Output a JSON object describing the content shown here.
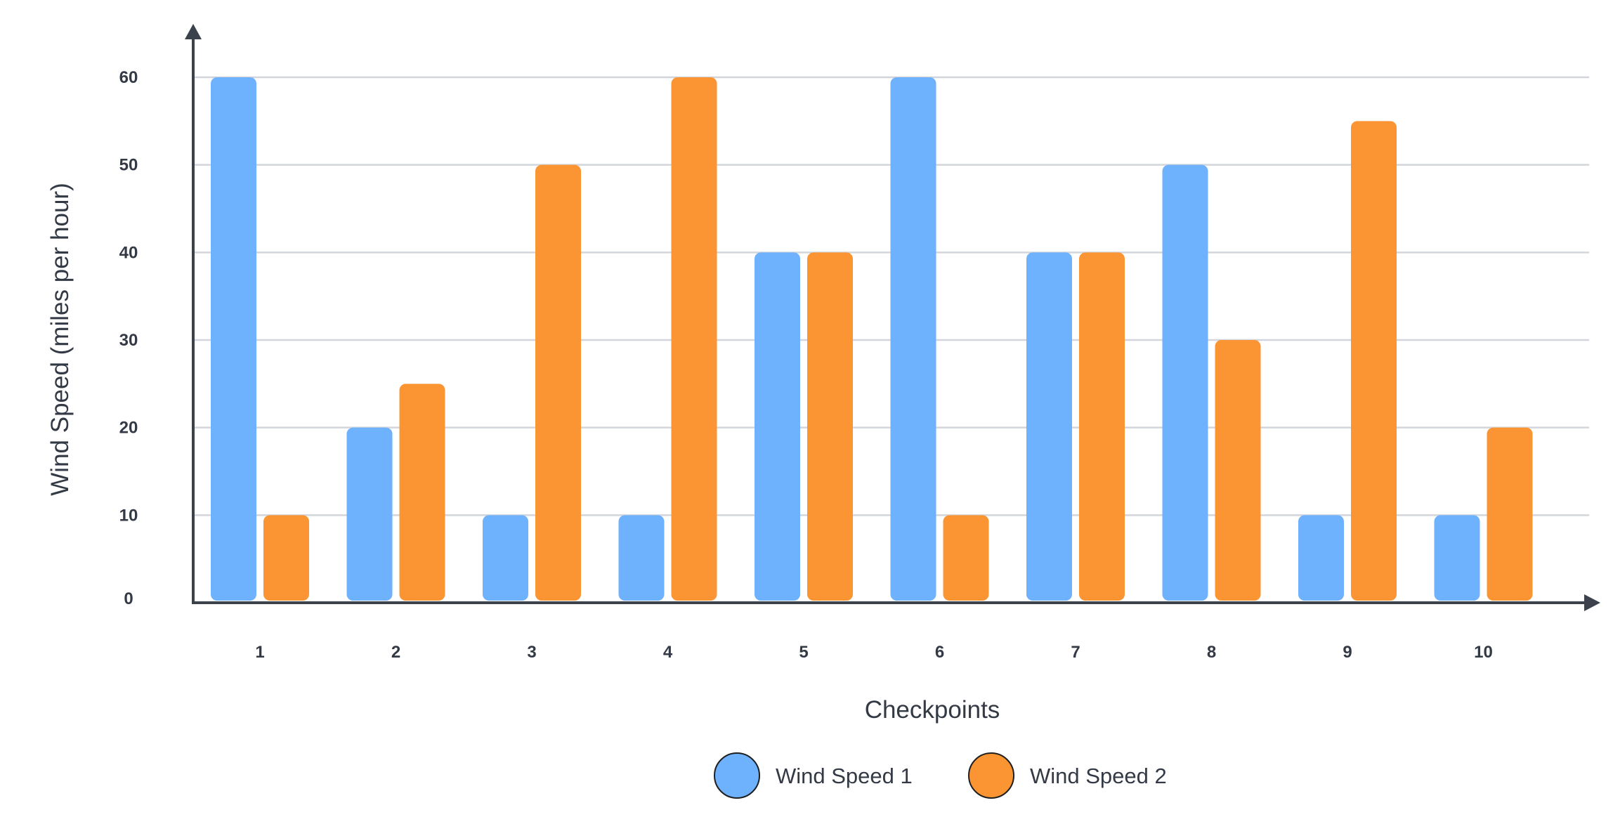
{
  "colors": {
    "series_1": "#6eb1fd",
    "series_2": "#fb9533",
    "axis": "#3c424c",
    "grid": "#d2d6dc",
    "text": "#333a45"
  },
  "chart_data": {
    "type": "bar",
    "title": "",
    "xlabel": "Checkpoints",
    "ylabel": "Wind Speed (miles per hour)",
    "ylim": [
      0,
      60
    ],
    "yticks": [
      0,
      10,
      20,
      30,
      40,
      50,
      60
    ],
    "grid": true,
    "legend_position": "bottom-center",
    "categories": [
      "1",
      "2",
      "3",
      "4",
      "5",
      "6",
      "7",
      "8",
      "9",
      "10"
    ],
    "series": [
      {
        "name": "Wind Speed 1",
        "color": "#6eb1fd",
        "values": [
          60,
          20,
          10,
          10,
          40,
          60,
          40,
          50,
          10,
          10
        ]
      },
      {
        "name": "Wind Speed 2",
        "color": "#fb9533",
        "values": [
          10,
          25,
          50,
          60,
          40,
          10,
          40,
          30,
          55,
          20
        ]
      }
    ]
  }
}
